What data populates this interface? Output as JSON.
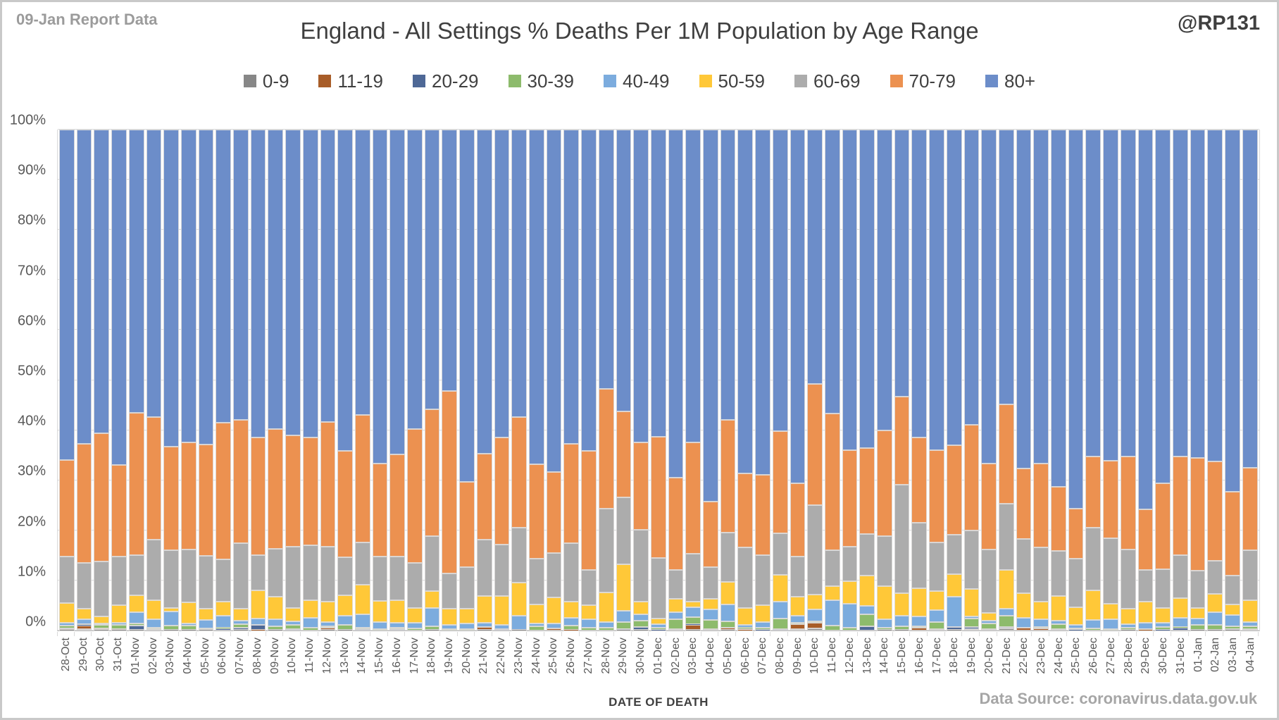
{
  "header": {
    "report_label": "09-Jan Report Data",
    "title": "England - All Settings % Deaths Per 1M Population by Age Range",
    "watermark": "@RP131"
  },
  "footer": {
    "x_axis_title": "DATE OF DEATH",
    "data_source": "Data Source: coronavirus.data.gov.uk"
  },
  "colors": {
    "grid": "#d9d9d9",
    "axis_text": "#595959",
    "title_text": "#3f3f3f",
    "muted_text": "#a6a6a6"
  },
  "chart_data": {
    "type": "bar",
    "stacked": true,
    "percent_stacked": true,
    "title": "England - All Settings % Deaths Per 1M Population by Age Range",
    "xlabel": "DATE OF DEATH",
    "ylabel": "",
    "ylim": [
      0,
      100
    ],
    "yticks": [
      0,
      10,
      20,
      30,
      40,
      50,
      60,
      70,
      80,
      90,
      100
    ],
    "ytick_suffix": "%",
    "grid": true,
    "legend_position": "top",
    "categories": [
      "28-Oct",
      "29-Oct",
      "30-Oct",
      "31-Oct",
      "01-Nov",
      "02-Nov",
      "03-Nov",
      "04-Nov",
      "05-Nov",
      "06-Nov",
      "07-Nov",
      "08-Nov",
      "09-Nov",
      "10-Nov",
      "11-Nov",
      "12-Nov",
      "13-Nov",
      "14-Nov",
      "15-Nov",
      "16-Nov",
      "17-Nov",
      "18-Nov",
      "19-Nov",
      "20-Nov",
      "21-Nov",
      "22-Nov",
      "23-Nov",
      "24-Nov",
      "25-Nov",
      "26-Nov",
      "27-Nov",
      "28-Nov",
      "29-Nov",
      "30-Nov",
      "01-Dec",
      "02-Dec",
      "03-Dec",
      "04-Dec",
      "05-Dec",
      "06-Dec",
      "07-Dec",
      "08-Dec",
      "09-Dec",
      "10-Dec",
      "11-Dec",
      "12-Dec",
      "13-Dec",
      "14-Dec",
      "15-Dec",
      "16-Dec",
      "17-Dec",
      "18-Dec",
      "19-Dec",
      "20-Dec",
      "21-Dec",
      "22-Dec",
      "23-Dec",
      "24-Dec",
      "25-Dec",
      "26-Dec",
      "27-Dec",
      "28-Dec",
      "29-Dec",
      "30-Dec",
      "31-Dec",
      "01-Jan",
      "02-Jan",
      "03-Jan",
      "04-Jan"
    ],
    "series": [
      {
        "name": "0-9",
        "color": "#878787",
        "values": [
          0.2,
          0.3,
          0.2,
          0.1,
          0.1,
          0.3,
          0.1,
          0.1,
          0.1,
          0,
          0.2,
          0,
          0.2,
          0,
          0,
          0.2,
          0.2,
          0,
          0,
          0,
          0,
          0.2,
          0,
          0,
          0.2,
          0,
          0.2,
          0,
          0,
          0,
          0,
          0,
          0.1,
          0.1,
          0,
          0.3,
          0.2,
          0.3,
          0.2,
          0,
          0,
          0,
          0.3,
          0.4,
          0,
          0,
          0,
          0.15,
          0.2,
          0,
          0.3,
          0.2,
          0.3,
          0.3,
          0.4,
          0,
          0,
          0.3,
          0,
          0,
          0,
          0.2,
          0,
          0,
          0,
          0.2,
          0.1,
          0.15,
          0.3
        ]
      },
      {
        "name": "11-19",
        "color": "#a85d28",
        "values": [
          0.1,
          0.7,
          0.2,
          0.2,
          0,
          0,
          0,
          0,
          0,
          0,
          0,
          0.2,
          0,
          0,
          0,
          0.4,
          0,
          0,
          0,
          0,
          0,
          0,
          0,
          0,
          0.5,
          0,
          0,
          0,
          0.4,
          0.2,
          0,
          0,
          0,
          0,
          0,
          0,
          0.9,
          0,
          0.3,
          0.2,
          0,
          0,
          1.0,
          1.1,
          0,
          0,
          0,
          0,
          0,
          0.5,
          0,
          0,
          0,
          0,
          0,
          0.5,
          0.4,
          0,
          0,
          0,
          0,
          0,
          0.1,
          0,
          0,
          0,
          0,
          0,
          0
        ]
      },
      {
        "name": "20-29",
        "color": "#4e6896",
        "values": [
          0.1,
          0.1,
          0,
          0,
          0.9,
          0,
          0,
          0,
          0,
          0.4,
          0.3,
          0.9,
          0,
          0.3,
          0,
          0,
          0,
          0.3,
          0,
          0.3,
          0,
          0,
          0,
          0,
          0,
          0.3,
          0,
          0,
          0,
          0,
          0,
          0,
          0.2,
          0.55,
          0.2,
          0,
          0.2,
          0,
          0,
          0.2,
          0.2,
          0.3,
          0,
          0,
          0,
          0,
          0.9,
          0,
          0,
          0,
          0,
          0.5,
          0.4,
          0,
          0.25,
          0,
          0,
          0,
          0.2,
          0,
          0,
          0,
          0,
          0.2,
          0.5,
          0,
          0,
          0.15,
          0
        ]
      },
      {
        "name": "30-39",
        "color": "#8dbb6c",
        "values": [
          0.6,
          0.2,
          0.7,
          0.8,
          0.4,
          0.3,
          0.9,
          0.9,
          0.3,
          0.2,
          0.7,
          0,
          0.6,
          0.8,
          0.5,
          0.2,
          0.9,
          0.2,
          0.3,
          0.2,
          0.4,
          0.6,
          0.3,
          0.3,
          0,
          0,
          0,
          0.8,
          0,
          0.8,
          0.6,
          0.5,
          1.4,
          1.35,
          0.4,
          2.0,
          1.4,
          1.8,
          1.3,
          0.2,
          0.3,
          2.1,
          0.3,
          0.3,
          1.0,
          0.6,
          2.4,
          0.4,
          0.7,
          0.3,
          1.4,
          0,
          1.7,
          1.1,
          2.35,
          0,
          0.3,
          1.0,
          0.2,
          0.4,
          0.3,
          0.3,
          0.2,
          0.5,
          0.2,
          0.9,
          1.0,
          0.6,
          0.6
        ]
      },
      {
        "name": "40-49",
        "color": "#7cacde",
        "values": [
          0.5,
          0.9,
          0.3,
          0.4,
          2.2,
          1.7,
          2.8,
          0.4,
          1.7,
          2.3,
          0.8,
          1.3,
          1.4,
          0.7,
          2.0,
          0.9,
          1.9,
          2.8,
          1.4,
          1.1,
          1.1,
          3.7,
          0.8,
          1.1,
          0.8,
          0.8,
          2.7,
          0.6,
          1.0,
          1.5,
          1.7,
          1.2,
          2.3,
          1.3,
          0.7,
          1.4,
          1.9,
          2.1,
          3.4,
          0.5,
          1.2,
          3.4,
          1.4,
          2.4,
          5.0,
          4.8,
          1.6,
          1.65,
          2.0,
          2.0,
          2.4,
          6.0,
          0.4,
          0.5,
          1.3,
          2.0,
          1.5,
          0.6,
          0.7,
          1.7,
          2.0,
          0.8,
          1.3,
          0.8,
          1.8,
          1.3,
          2.5,
          2.2,
          0.8
        ]
      },
      {
        "name": "50-59",
        "color": "#ffc838",
        "values": [
          4.0,
          2.2,
          1.4,
          3.5,
          3.5,
          3.8,
          0.7,
          4.2,
          2.3,
          2.9,
          2.4,
          5.6,
          4.5,
          2.7,
          3.5,
          4.0,
          4.0,
          5.9,
          4.2,
          4.4,
          3.0,
          3.4,
          3.3,
          3.0,
          5.4,
          5.8,
          6.7,
          3.8,
          5.2,
          3.2,
          2.7,
          5.9,
          9.2,
          2.4,
          1.1,
          2.6,
          1.1,
          2.1,
          4.5,
          3.4,
          3.3,
          5.3,
          3.7,
          3.0,
          2.8,
          4.4,
          6.1,
          6.7,
          4.5,
          5.7,
          3.8,
          4.6,
          5.5,
          1.6,
          7.8,
          5.0,
          3.5,
          5.0,
          3.6,
          5.9,
          3.0,
          3.0,
          4.1,
          3.0,
          4.0,
          2.1,
          3.7,
          2.1,
          4.3
        ]
      },
      {
        "name": "60-69",
        "color": "#acacac",
        "values": [
          9.2,
          9.1,
          11.0,
          9.8,
          8.0,
          12.0,
          11.5,
          10.6,
          10.5,
          8.4,
          13.0,
          7.0,
          9.6,
          12.3,
          11.0,
          11.1,
          7.6,
          8.4,
          8.8,
          8.7,
          9.0,
          11.0,
          7.0,
          8.2,
          11.2,
          10.3,
          10.9,
          9.2,
          8.9,
          11.7,
          7.1,
          16.7,
          13.4,
          14.4,
          12.1,
          5.8,
          9.6,
          6.3,
          9.9,
          12.1,
          10.0,
          8.3,
          8.1,
          17.8,
          7.2,
          7.0,
          8.3,
          10.0,
          21.7,
          13.0,
          9.7,
          7.8,
          11.7,
          12.7,
          13.2,
          10.8,
          10.9,
          9.0,
          9.7,
          12.5,
          13.1,
          11.9,
          6.4,
          7.7,
          8.5,
          7.4,
          6.6,
          5.8,
          10.1
        ]
      },
      {
        "name": "70-79",
        "color": "#ec9150",
        "values": [
          19.3,
          23.8,
          25.6,
          18.3,
          28.4,
          24.5,
          20.7,
          21.3,
          22.3,
          27.3,
          24.7,
          23.5,
          23.9,
          22.2,
          21.6,
          24.9,
          21.2,
          25.4,
          18.7,
          20.4,
          26.7,
          25.2,
          36.4,
          17.1,
          17.2,
          21.3,
          22.1,
          18.8,
          16.1,
          19.9,
          23.8,
          24.0,
          17.1,
          17.4,
          24.2,
          18.4,
          22.3,
          13.2,
          22.4,
          14.7,
          16.1,
          20.4,
          14.6,
          24.2,
          27.3,
          19.2,
          17.1,
          21.1,
          17.6,
          17.0,
          18.4,
          17.9,
          21.1,
          17.2,
          19.8,
          14.0,
          16.8,
          12.8,
          9.9,
          14.2,
          15.5,
          18.5,
          12.1,
          17.2,
          19.7,
          22.6,
          19.9,
          16.7,
          16.4
        ]
      },
      {
        "name": "80+",
        "color": "#6c8dc9",
        "values": [
          66.0,
          62.7,
          60.6,
          66.9,
          56.5,
          57.4,
          63.3,
          62.5,
          62.8,
          58.5,
          57.9,
          61.5,
          59.8,
          61.0,
          61.4,
          58.3,
          64.2,
          57.0,
          66.6,
          64.9,
          59.8,
          55.9,
          52.2,
          70.3,
          64.7,
          61.5,
          57.4,
          66.8,
          68.4,
          62.7,
          64.1,
          51.7,
          56.3,
          62.5,
          61.3,
          69.5,
          62.4,
          74.2,
          58.0,
          68.7,
          68.9,
          60.2,
          70.6,
          50.8,
          56.7,
          64.0,
          63.6,
          60.0,
          53.3,
          61.5,
          64.0,
          63.0,
          58.9,
          66.6,
          54.9,
          67.7,
          66.6,
          71.3,
          75.7,
          65.3,
          66.1,
          65.3,
          75.8,
          70.6,
          65.3,
          65.5,
          66.2,
          72.3,
          67.5
        ]
      }
    ]
  }
}
